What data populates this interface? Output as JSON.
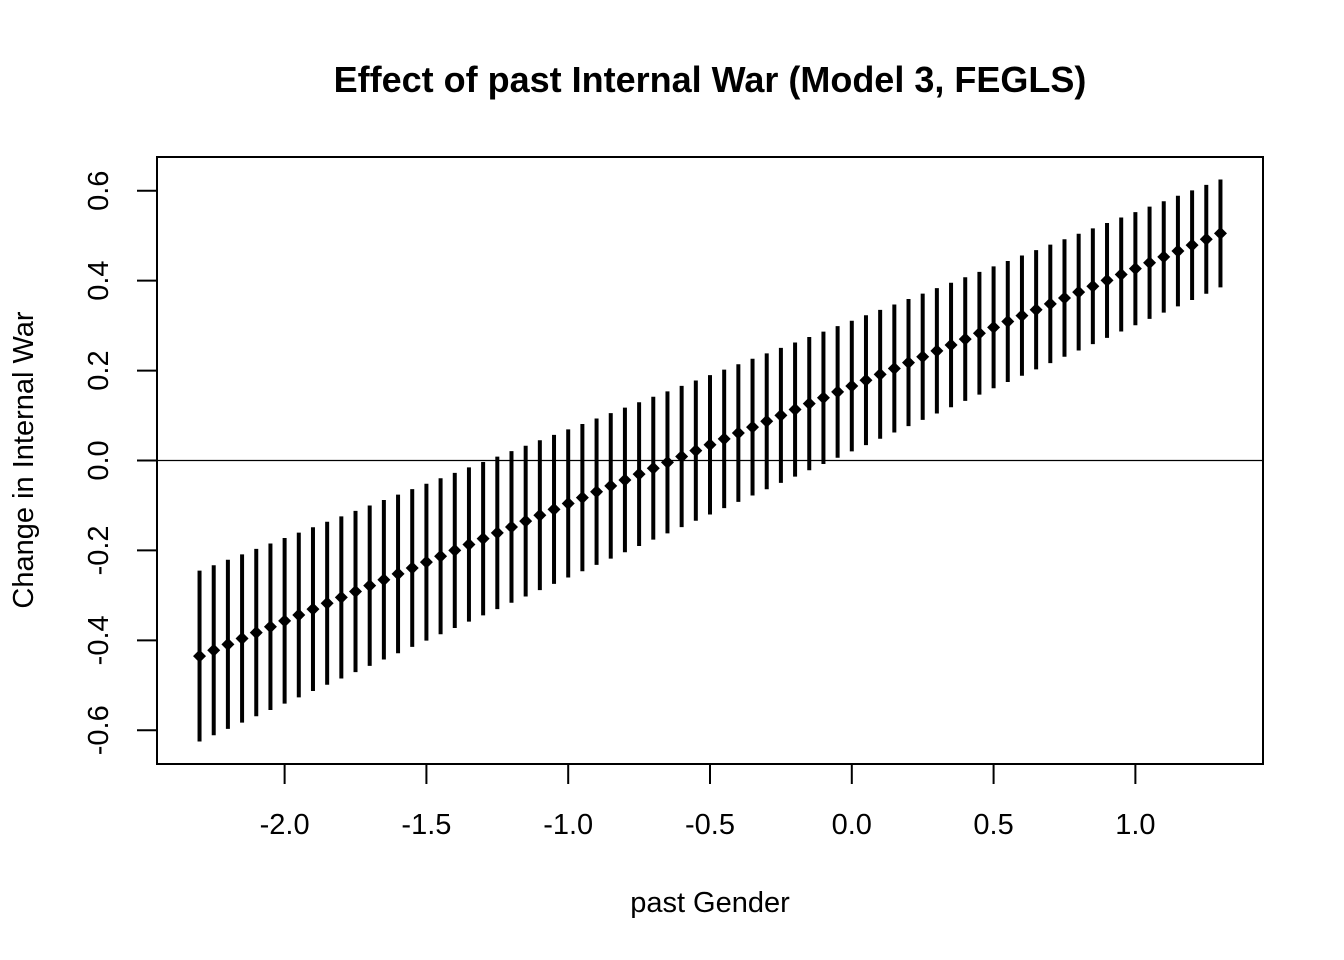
{
  "chart_data": {
    "type": "scatter",
    "title": "Effect of past Internal War (Model 3, FEGLS)",
    "xlabel": "past Gender",
    "ylabel": "Change in Internal War",
    "xlim": [
      -2.45,
      1.45
    ],
    "ylim": [
      -0.675,
      0.675
    ],
    "xticks": [
      -2.0,
      -1.5,
      -1.0,
      -0.5,
      0.0,
      0.5,
      1.0
    ],
    "xtick_labels": [
      "-2.0",
      "-1.5",
      "-1.0",
      "-0.5",
      "0.0",
      "0.5",
      "1.0"
    ],
    "yticks": [
      -0.6,
      -0.4,
      -0.2,
      0.0,
      0.2,
      0.4,
      0.6
    ],
    "ytick_labels": [
      "-0.6",
      "-0.4",
      "-0.2",
      "0.0",
      "0.2",
      "0.4",
      "0.6"
    ],
    "reference_line_y": 0,
    "grid": false,
    "legend": "none",
    "series": [
      {
        "x_start": -2.3,
        "x_end": 1.3,
        "x_step": 0.05,
        "estimate_start": -0.435,
        "estimate_end": 0.505,
        "lower_start": -0.625,
        "lower_end": 0.385,
        "upper_start": -0.245,
        "upper_end": 0.625,
        "marker": "diamond",
        "color": "#000000"
      }
    ]
  }
}
